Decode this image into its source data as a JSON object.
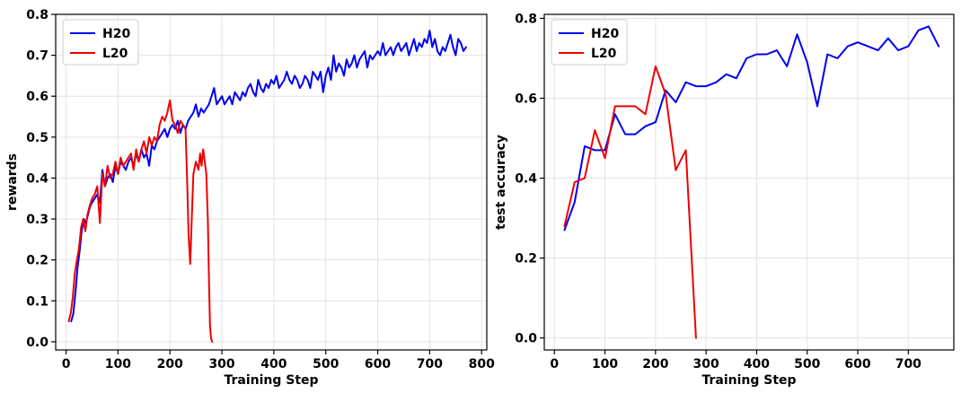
{
  "chart_data": [
    {
      "type": "line",
      "xlabel": "Training Step",
      "ylabel": "rewards",
      "xlim": [
        -20,
        810
      ],
      "ylim": [
        -0.02,
        0.8
      ],
      "xticks": [
        0,
        100,
        200,
        300,
        400,
        500,
        600,
        700,
        800
      ],
      "yticks": [
        0.0,
        0.1,
        0.2,
        0.3,
        0.4,
        0.5,
        0.6,
        0.7,
        0.8
      ],
      "xtick_labels": [
        "0",
        "100",
        "200",
        "300",
        "400",
        "500",
        "600",
        "700",
        "800"
      ],
      "ytick_labels": [
        "0.0",
        "0.1",
        "0.2",
        "0.3",
        "0.4",
        "0.5",
        "0.6",
        "0.7",
        "0.8"
      ],
      "grid": true,
      "legend_position": "top-left",
      "series": [
        {
          "name": "H20",
          "color": "#0000ee",
          "x": [
            10,
            14,
            18,
            22,
            26,
            30,
            34,
            38,
            42,
            46,
            50,
            55,
            60,
            65,
            70,
            75,
            80,
            85,
            90,
            95,
            100,
            105,
            110,
            115,
            120,
            125,
            130,
            135,
            140,
            145,
            150,
            155,
            160,
            165,
            170,
            175,
            180,
            185,
            190,
            195,
            200,
            205,
            210,
            215,
            220,
            225,
            230,
            235,
            240,
            245,
            250,
            255,
            260,
            265,
            270,
            275,
            280,
            285,
            290,
            295,
            300,
            305,
            310,
            315,
            320,
            325,
            330,
            335,
            340,
            345,
            350,
            355,
            360,
            365,
            370,
            375,
            380,
            385,
            390,
            395,
            400,
            405,
            410,
            415,
            420,
            425,
            430,
            435,
            440,
            445,
            450,
            455,
            460,
            465,
            470,
            475,
            480,
            485,
            490,
            495,
            500,
            505,
            510,
            515,
            520,
            525,
            530,
            535,
            540,
            545,
            550,
            555,
            560,
            565,
            570,
            575,
            580,
            585,
            590,
            595,
            600,
            605,
            610,
            615,
            620,
            625,
            630,
            635,
            640,
            645,
            650,
            655,
            660,
            665,
            670,
            675,
            680,
            685,
            690,
            695,
            700,
            705,
            710,
            715,
            720,
            725,
            730,
            735,
            740,
            745,
            750,
            755,
            760,
            765,
            770
          ],
          "values": [
            0.05,
            0.07,
            0.12,
            0.18,
            0.22,
            0.27,
            0.3,
            0.29,
            0.31,
            0.33,
            0.34,
            0.35,
            0.36,
            0.34,
            0.42,
            0.38,
            0.4,
            0.41,
            0.39,
            0.43,
            0.41,
            0.44,
            0.43,
            0.42,
            0.44,
            0.45,
            0.43,
            0.46,
            0.44,
            0.47,
            0.45,
            0.46,
            0.43,
            0.48,
            0.47,
            0.49,
            0.5,
            0.51,
            0.52,
            0.5,
            0.52,
            0.53,
            0.52,
            0.54,
            0.51,
            0.53,
            0.52,
            0.54,
            0.55,
            0.56,
            0.58,
            0.55,
            0.57,
            0.56,
            0.57,
            0.58,
            0.6,
            0.62,
            0.58,
            0.59,
            0.6,
            0.58,
            0.59,
            0.6,
            0.58,
            0.61,
            0.6,
            0.59,
            0.61,
            0.6,
            0.62,
            0.63,
            0.61,
            0.6,
            0.64,
            0.62,
            0.61,
            0.63,
            0.62,
            0.64,
            0.63,
            0.65,
            0.62,
            0.63,
            0.64,
            0.66,
            0.64,
            0.63,
            0.65,
            0.64,
            0.62,
            0.63,
            0.65,
            0.64,
            0.62,
            0.66,
            0.65,
            0.64,
            0.66,
            0.61,
            0.65,
            0.67,
            0.64,
            0.7,
            0.66,
            0.68,
            0.67,
            0.65,
            0.69,
            0.67,
            0.68,
            0.7,
            0.67,
            0.69,
            0.7,
            0.71,
            0.67,
            0.7,
            0.69,
            0.7,
            0.71,
            0.7,
            0.73,
            0.7,
            0.71,
            0.72,
            0.7,
            0.72,
            0.73,
            0.71,
            0.72,
            0.73,
            0.7,
            0.72,
            0.74,
            0.71,
            0.73,
            0.72,
            0.74,
            0.73,
            0.76,
            0.72,
            0.74,
            0.71,
            0.7,
            0.72,
            0.71,
            0.73,
            0.75,
            0.72,
            0.7,
            0.74,
            0.73,
            0.71,
            0.72
          ]
        },
        {
          "name": "L20",
          "color": "#ee0000",
          "x": [
            5,
            9,
            13,
            17,
            21,
            25,
            29,
            33,
            37,
            41,
            45,
            50,
            55,
            60,
            65,
            70,
            75,
            80,
            85,
            90,
            95,
            100,
            105,
            110,
            115,
            120,
            125,
            130,
            135,
            140,
            145,
            150,
            155,
            160,
            165,
            170,
            175,
            180,
            185,
            190,
            195,
            200,
            205,
            210,
            215,
            220,
            225,
            230,
            233,
            236,
            239,
            242,
            245,
            250,
            255,
            258,
            261,
            264,
            267,
            270,
            273,
            275,
            277,
            279,
            281
          ],
          "values": [
            0.05,
            0.07,
            0.11,
            0.17,
            0.2,
            0.23,
            0.28,
            0.3,
            0.27,
            0.31,
            0.33,
            0.35,
            0.36,
            0.38,
            0.29,
            0.41,
            0.38,
            0.43,
            0.4,
            0.41,
            0.44,
            0.41,
            0.45,
            0.43,
            0.44,
            0.45,
            0.46,
            0.42,
            0.47,
            0.44,
            0.47,
            0.49,
            0.46,
            0.5,
            0.48,
            0.5,
            0.49,
            0.53,
            0.55,
            0.54,
            0.56,
            0.59,
            0.54,
            0.53,
            0.51,
            0.54,
            0.53,
            0.52,
            0.4,
            0.26,
            0.19,
            0.3,
            0.41,
            0.44,
            0.42,
            0.46,
            0.43,
            0.47,
            0.44,
            0.41,
            0.3,
            0.16,
            0.04,
            0.01,
            0.0
          ]
        }
      ]
    },
    {
      "type": "line",
      "xlabel": "Training Step",
      "ylabel": "test accuracy",
      "xlim": [
        -20,
        790
      ],
      "ylim": [
        -0.03,
        0.81
      ],
      "xticks": [
        0,
        100,
        200,
        300,
        400,
        500,
        600,
        700
      ],
      "yticks": [
        0.0,
        0.2,
        0.4,
        0.6,
        0.8
      ],
      "xtick_labels": [
        "0",
        "100",
        "200",
        "300",
        "400",
        "500",
        "600",
        "700"
      ],
      "ytick_labels": [
        "0.0",
        "0.2",
        "0.4",
        "0.6",
        "0.8"
      ],
      "grid": true,
      "legend_position": "top-left",
      "series": [
        {
          "name": "H20",
          "color": "#0000ee",
          "x": [
            20,
            40,
            60,
            80,
            100,
            120,
            140,
            160,
            180,
            200,
            220,
            240,
            260,
            280,
            300,
            320,
            340,
            360,
            380,
            400,
            420,
            440,
            460,
            480,
            500,
            520,
            540,
            560,
            580,
            600,
            620,
            640,
            660,
            680,
            700,
            720,
            740,
            760
          ],
          "values": [
            0.27,
            0.34,
            0.48,
            0.47,
            0.47,
            0.56,
            0.51,
            0.51,
            0.53,
            0.54,
            0.62,
            0.59,
            0.64,
            0.63,
            0.63,
            0.64,
            0.66,
            0.65,
            0.7,
            0.71,
            0.71,
            0.72,
            0.68,
            0.76,
            0.69,
            0.58,
            0.71,
            0.7,
            0.73,
            0.74,
            0.73,
            0.72,
            0.75,
            0.72,
            0.73,
            0.77,
            0.78,
            0.73
          ]
        },
        {
          "name": "L20",
          "color": "#ee0000",
          "x": [
            20,
            40,
            60,
            80,
            100,
            120,
            140,
            160,
            180,
            200,
            220,
            240,
            260,
            280
          ],
          "values": [
            0.28,
            0.39,
            0.4,
            0.52,
            0.45,
            0.58,
            0.58,
            0.58,
            0.56,
            0.68,
            0.61,
            0.42,
            0.47,
            0.0
          ]
        }
      ]
    }
  ]
}
